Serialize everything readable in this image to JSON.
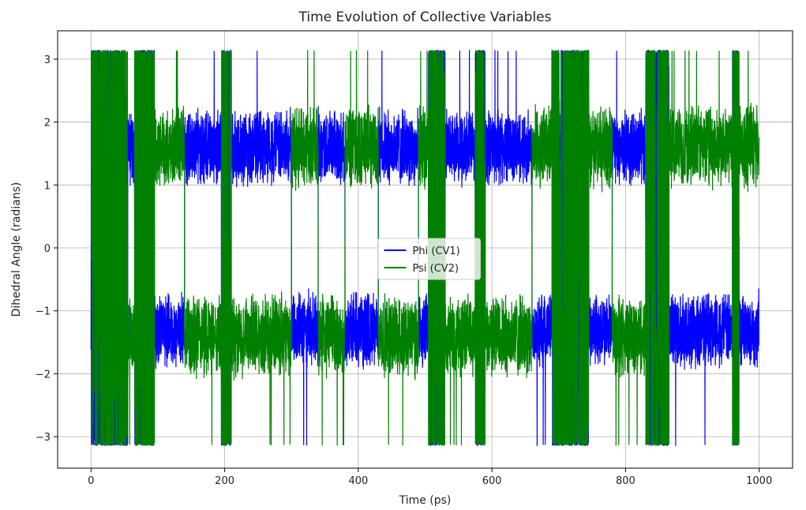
{
  "chart_data": {
    "type": "line",
    "title": "Time Evolution of Collective Variables",
    "xlabel": "Time (ps)",
    "ylabel": "Dihedral Angle (radians)",
    "xlim": [
      -50,
      1050
    ],
    "ylim": [
      -3.5,
      3.45
    ],
    "x_ticks": [
      0,
      200,
      400,
      600,
      800,
      1000
    ],
    "x_tick_labels": [
      "0",
      "200",
      "400",
      "600",
      "800",
      "1000"
    ],
    "y_ticks": [
      3,
      2,
      1,
      0,
      -1,
      -2,
      -3
    ],
    "y_tick_labels": [
      "3",
      "2",
      "1",
      "0",
      "−1",
      "−2",
      "−3"
    ],
    "grid": true,
    "legend_position": "center",
    "x_range": [
      0,
      1000
    ],
    "series": [
      {
        "name": "Phi (CV1)",
        "color": "#0000ff",
        "mode_centers": [
          1.6,
          -1.3
        ],
        "mode_halfwidth": 0.55,
        "wrap_limits": [
          -3.14,
          3.14
        ],
        "segments": [
          {
            "start": 0,
            "end": 5,
            "state": "wrap"
          },
          {
            "start": 5,
            "end": 55,
            "state": "wrap"
          },
          {
            "start": 55,
            "end": 65,
            "state": "upper"
          },
          {
            "start": 65,
            "end": 95,
            "state": "wrap"
          },
          {
            "start": 95,
            "end": 140,
            "state": "lower"
          },
          {
            "start": 140,
            "end": 195,
            "state": "upper"
          },
          {
            "start": 195,
            "end": 210,
            "state": "wrap"
          },
          {
            "start": 210,
            "end": 300,
            "state": "upper"
          },
          {
            "start": 300,
            "end": 340,
            "state": "lower"
          },
          {
            "start": 340,
            "end": 380,
            "state": "upper"
          },
          {
            "start": 380,
            "end": 430,
            "state": "lower"
          },
          {
            "start": 430,
            "end": 490,
            "state": "upper"
          },
          {
            "start": 490,
            "end": 505,
            "state": "lower"
          },
          {
            "start": 505,
            "end": 530,
            "state": "wrap"
          },
          {
            "start": 530,
            "end": 575,
            "state": "upper"
          },
          {
            "start": 575,
            "end": 590,
            "state": "wrap"
          },
          {
            "start": 590,
            "end": 660,
            "state": "upper"
          },
          {
            "start": 660,
            "end": 690,
            "state": "lower"
          },
          {
            "start": 690,
            "end": 745,
            "state": "wrap"
          },
          {
            "start": 745,
            "end": 780,
            "state": "lower"
          },
          {
            "start": 780,
            "end": 830,
            "state": "upper"
          },
          {
            "start": 830,
            "end": 865,
            "state": "wrap"
          },
          {
            "start": 865,
            "end": 960,
            "state": "lower"
          },
          {
            "start": 960,
            "end": 970,
            "state": "wrap"
          },
          {
            "start": 970,
            "end": 1000,
            "state": "lower"
          }
        ]
      },
      {
        "name": "Psi (CV2)",
        "color": "#008000",
        "mode_centers": [
          1.6,
          -1.4
        ],
        "mode_halfwidth": 0.6,
        "wrap_limits": [
          -3.14,
          3.14
        ],
        "segments": [
          {
            "start": 0,
            "end": 5,
            "state": "wrap"
          },
          {
            "start": 5,
            "end": 55,
            "state": "wrap"
          },
          {
            "start": 55,
            "end": 65,
            "state": "lower"
          },
          {
            "start": 65,
            "end": 95,
            "state": "wrap"
          },
          {
            "start": 95,
            "end": 140,
            "state": "upper"
          },
          {
            "start": 140,
            "end": 195,
            "state": "lower"
          },
          {
            "start": 195,
            "end": 210,
            "state": "wrap"
          },
          {
            "start": 210,
            "end": 300,
            "state": "lower"
          },
          {
            "start": 300,
            "end": 340,
            "state": "upper"
          },
          {
            "start": 340,
            "end": 380,
            "state": "lower"
          },
          {
            "start": 380,
            "end": 430,
            "state": "upper"
          },
          {
            "start": 430,
            "end": 490,
            "state": "lower"
          },
          {
            "start": 490,
            "end": 505,
            "state": "upper"
          },
          {
            "start": 505,
            "end": 530,
            "state": "wrap"
          },
          {
            "start": 530,
            "end": 575,
            "state": "lower"
          },
          {
            "start": 575,
            "end": 590,
            "state": "wrap"
          },
          {
            "start": 590,
            "end": 660,
            "state": "lower"
          },
          {
            "start": 660,
            "end": 690,
            "state": "upper"
          },
          {
            "start": 690,
            "end": 745,
            "state": "wrap"
          },
          {
            "start": 745,
            "end": 780,
            "state": "upper"
          },
          {
            "start": 780,
            "end": 830,
            "state": "lower"
          },
          {
            "start": 830,
            "end": 865,
            "state": "wrap"
          },
          {
            "start": 865,
            "end": 960,
            "state": "upper"
          },
          {
            "start": 960,
            "end": 970,
            "state": "wrap"
          },
          {
            "start": 970,
            "end": 1000,
            "state": "upper"
          }
        ]
      }
    ]
  }
}
